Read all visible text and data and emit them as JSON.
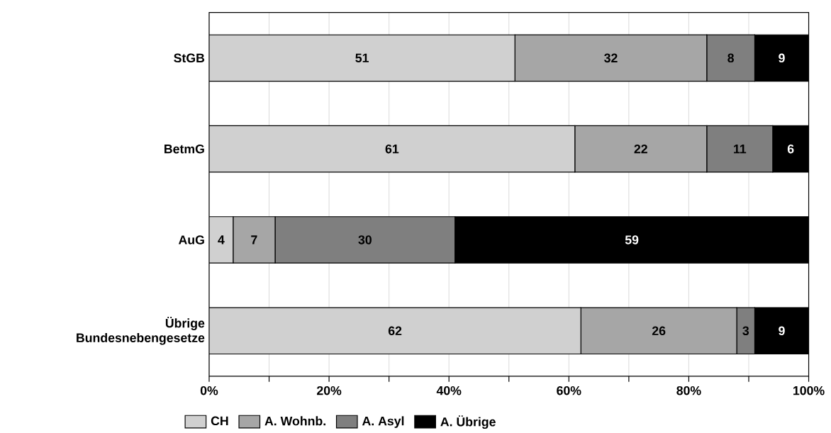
{
  "chart_data": {
    "type": "bar",
    "orientation": "horizontal",
    "stacked": true,
    "categories": [
      "StGB",
      "BetmG",
      "AuG",
      "Übrige Bundesnebengesetze"
    ],
    "series": [
      {
        "name": "CH",
        "color": "#d0d0d0",
        "values": [
          51,
          61,
          4,
          62
        ]
      },
      {
        "name": "A. Wohnb.",
        "color": "#a6a6a6",
        "values": [
          32,
          22,
          7,
          26
        ]
      },
      {
        "name": "A. Asyl",
        "color": "#7f7f7f",
        "values": [
          8,
          11,
          30,
          3
        ]
      },
      {
        "name": "A. Übrige",
        "color": "#000000",
        "values": [
          9,
          6,
          59,
          9
        ]
      }
    ],
    "xlim": [
      0,
      100
    ],
    "xticks": [
      {
        "value": 0,
        "label": "0%"
      },
      {
        "value": 10,
        "label": null
      },
      {
        "value": 20,
        "label": "20%"
      },
      {
        "value": 30,
        "label": null
      },
      {
        "value": 40,
        "label": "40%"
      },
      {
        "value": 50,
        "label": null
      },
      {
        "value": 60,
        "label": "60%"
      },
      {
        "value": 70,
        "label": null
      },
      {
        "value": 80,
        "label": "80%"
      },
      {
        "value": 90,
        "label": null
      },
      {
        "value": 100,
        "label": "100%"
      }
    ],
    "grid": "x",
    "legend": "bottom",
    "data_labels": true
  }
}
